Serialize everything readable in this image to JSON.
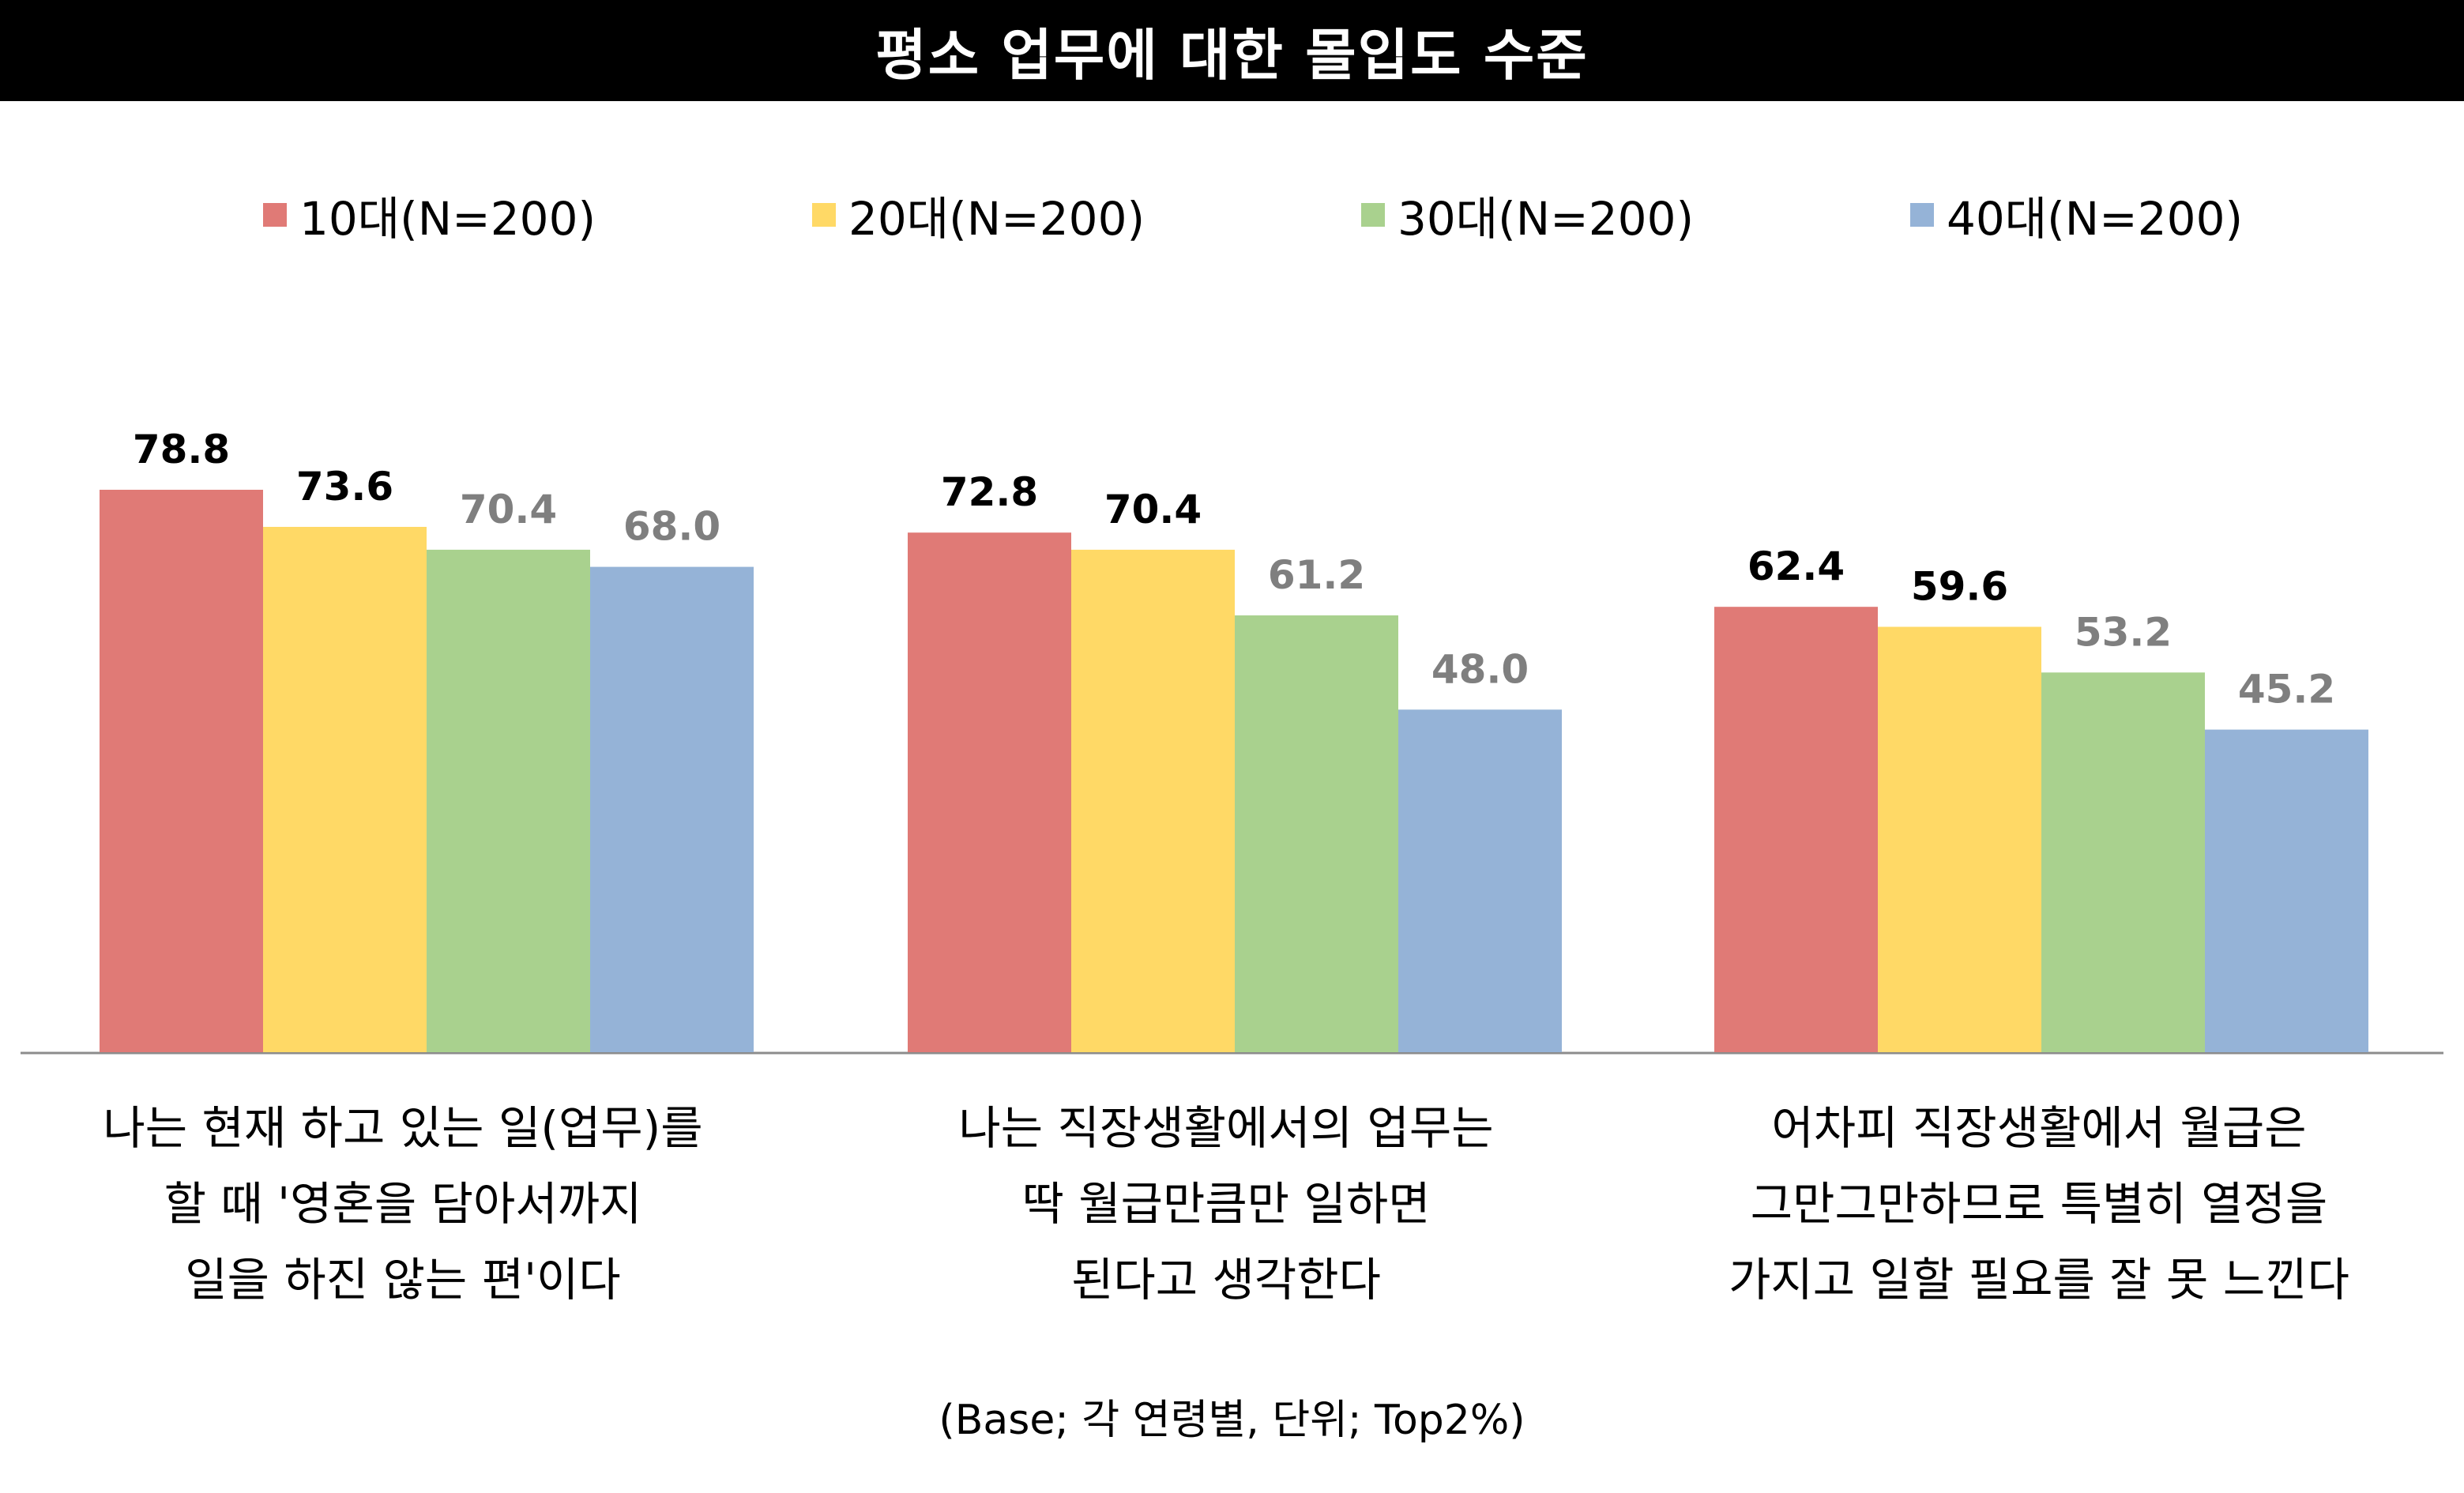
{
  "chart_data": {
    "type": "bar",
    "title": "평소 업무에 대한 몰입도 수준",
    "categories": [
      "나는 현재 하고 있는 일(업무)를\n할 때 '영혼을 담아서까지\n일을 하진 않는 편'이다",
      "나는 직장생활에서의 업무는\n딱 월급만큼만 일하면\n된다고 생각한다",
      "어차피 직장생활에서 월급은\n그만그만하므로 특별히 열정을\n가지고 일할 필요를 잘 못 느낀다"
    ],
    "series": [
      {
        "name": "10대(N=200)",
        "color": "#E07A76",
        "label_color": "#000000",
        "values": [
          78.8,
          72.8,
          62.4
        ]
      },
      {
        "name": "20대(N=200)",
        "color": "#FFD966",
        "label_color": "#000000",
        "values": [
          73.6,
          70.4,
          59.6
        ]
      },
      {
        "name": "30대(N=200)",
        "color": "#A9D18E",
        "label_color": "#7F7F7F",
        "values": [
          70.4,
          61.2,
          53.2
        ]
      },
      {
        "name": "40대(N=200)",
        "color": "#95B3D7",
        "label_color": "#7F7F7F",
        "values": [
          68.0,
          48.0,
          45.2
        ]
      }
    ],
    "value_labels": [
      [
        "78.8",
        "72.8",
        "62.4"
      ],
      [
        "73.6",
        "70.4",
        "59.6"
      ],
      [
        "70.4",
        "61.2",
        "53.2"
      ],
      [
        "68.0",
        "48.0",
        "45.2"
      ]
    ],
    "ylim": [
      0,
      100
    ],
    "xlabel": "",
    "ylabel": "",
    "grid": false,
    "legend_position": "top",
    "footnote": "(Base; 각 연령별, 단위; Top2%)"
  }
}
